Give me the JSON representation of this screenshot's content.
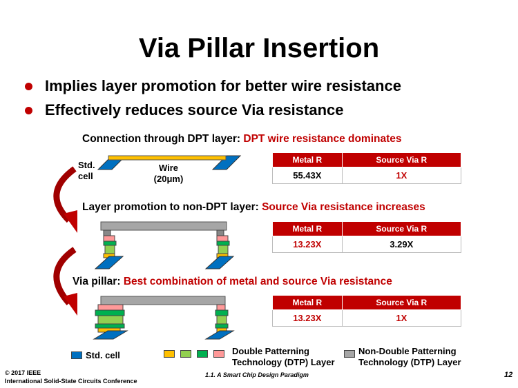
{
  "title": "Via Pillar Insertion",
  "bullets": [
    "Implies layer promotion for better wire resistance",
    "Effectively reduces source Via resistance"
  ],
  "sections": [
    {
      "label": "Connection through DPT layer:",
      "highlight": "DPT wire resistance dominates",
      "table": {
        "headers": [
          "Metal R",
          "Source Via R"
        ],
        "values": [
          "55.43X",
          "1X"
        ]
      }
    },
    {
      "label": "Layer promotion to non-DPT layer:",
      "highlight": "Source Via resistance increases",
      "table": {
        "headers": [
          "Metal R",
          "Source Via R"
        ],
        "values": [
          "13.23X",
          "3.29X"
        ]
      }
    },
    {
      "label": "Via pillar:",
      "highlight": "Best combination of metal and source Via resistance",
      "table": {
        "headers": [
          "Metal R",
          "Source Via R"
        ],
        "values": [
          "13.23X",
          "1X"
        ]
      }
    }
  ],
  "diagram": {
    "std_cell_label": [
      "Std.",
      "cell"
    ],
    "wire_label": [
      "Wire",
      "(20μm)"
    ]
  },
  "legend": {
    "std_cell": "Std. cell",
    "dpt": [
      "Double Patterning",
      "Technology (DTP) Layer"
    ],
    "non_dpt": [
      "Non-Double Patterning",
      "Technology (DTP) Layer"
    ]
  },
  "colors": {
    "std_cell": "#0070c0",
    "dpt": [
      "#ffc000",
      "#92d050",
      "#00b050",
      "#ff9999"
    ],
    "non_dpt": "#a6a6a6",
    "accent": "#c00000"
  },
  "footer": {
    "copyright": "© 2017 IEEE",
    "conference": "International Solid-State Circuits Conference",
    "session": "1.1. A Smart Chip Design Paradigm",
    "page": "12"
  }
}
